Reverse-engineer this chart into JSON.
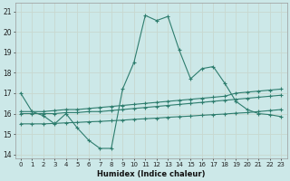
{
  "title": "",
  "xlabel": "Humidex (Indice chaleur)",
  "ylabel": "",
  "bg_color": "#cce8e8",
  "line_color": "#2e7d6e",
  "grid_color": "#c8d8d0",
  "xlim": [
    -0.5,
    23.5
  ],
  "ylim": [
    13.8,
    21.4
  ],
  "yticks": [
    14,
    15,
    16,
    17,
    18,
    19,
    20,
    21
  ],
  "xticks": [
    0,
    1,
    2,
    3,
    4,
    5,
    6,
    7,
    8,
    9,
    10,
    11,
    12,
    13,
    14,
    15,
    16,
    17,
    18,
    19,
    20,
    21,
    22,
    23
  ],
  "line1_x": [
    0,
    1,
    2,
    3,
    4,
    5,
    6,
    7,
    8,
    9,
    10,
    11,
    12,
    13,
    14,
    15,
    16,
    17,
    18,
    19,
    20,
    21,
    22,
    23
  ],
  "line1_y": [
    17.0,
    16.1,
    15.9,
    15.5,
    16.0,
    15.3,
    14.7,
    14.3,
    14.3,
    17.2,
    18.5,
    20.8,
    20.55,
    20.75,
    19.1,
    17.7,
    18.2,
    18.3,
    17.5,
    16.6,
    16.2,
    16.0,
    15.95,
    15.85
  ],
  "line2_x": [
    0,
    1,
    2,
    3,
    4,
    5,
    6,
    7,
    8,
    9,
    10,
    11,
    12,
    13,
    14,
    15,
    16,
    17,
    18,
    19,
    20,
    21,
    22,
    23
  ],
  "line2_y": [
    16.1,
    16.1,
    16.1,
    16.15,
    16.2,
    16.2,
    16.25,
    16.3,
    16.35,
    16.4,
    16.45,
    16.5,
    16.55,
    16.6,
    16.65,
    16.7,
    16.75,
    16.8,
    16.85,
    17.0,
    17.05,
    17.1,
    17.15,
    17.2
  ],
  "line3_x": [
    0,
    1,
    2,
    3,
    4,
    5,
    6,
    7,
    8,
    9,
    10,
    11,
    12,
    13,
    14,
    15,
    16,
    17,
    18,
    19,
    20,
    21,
    22,
    23
  ],
  "line3_y": [
    16.0,
    16.0,
    16.0,
    16.0,
    16.05,
    16.05,
    16.1,
    16.1,
    16.15,
    16.2,
    16.25,
    16.3,
    16.35,
    16.4,
    16.45,
    16.5,
    16.55,
    16.6,
    16.65,
    16.7,
    16.75,
    16.8,
    16.85,
    16.9
  ],
  "line4_x": [
    0,
    1,
    2,
    3,
    4,
    5,
    6,
    7,
    8,
    9,
    10,
    11,
    12,
    13,
    14,
    15,
    16,
    17,
    18,
    19,
    20,
    21,
    22,
    23
  ],
  "line4_y": [
    15.5,
    15.5,
    15.5,
    15.52,
    15.55,
    15.57,
    15.6,
    15.62,
    15.65,
    15.68,
    15.72,
    15.75,
    15.78,
    15.82,
    15.85,
    15.88,
    15.92,
    15.95,
    15.98,
    16.02,
    16.05,
    16.1,
    16.15,
    16.2
  ]
}
